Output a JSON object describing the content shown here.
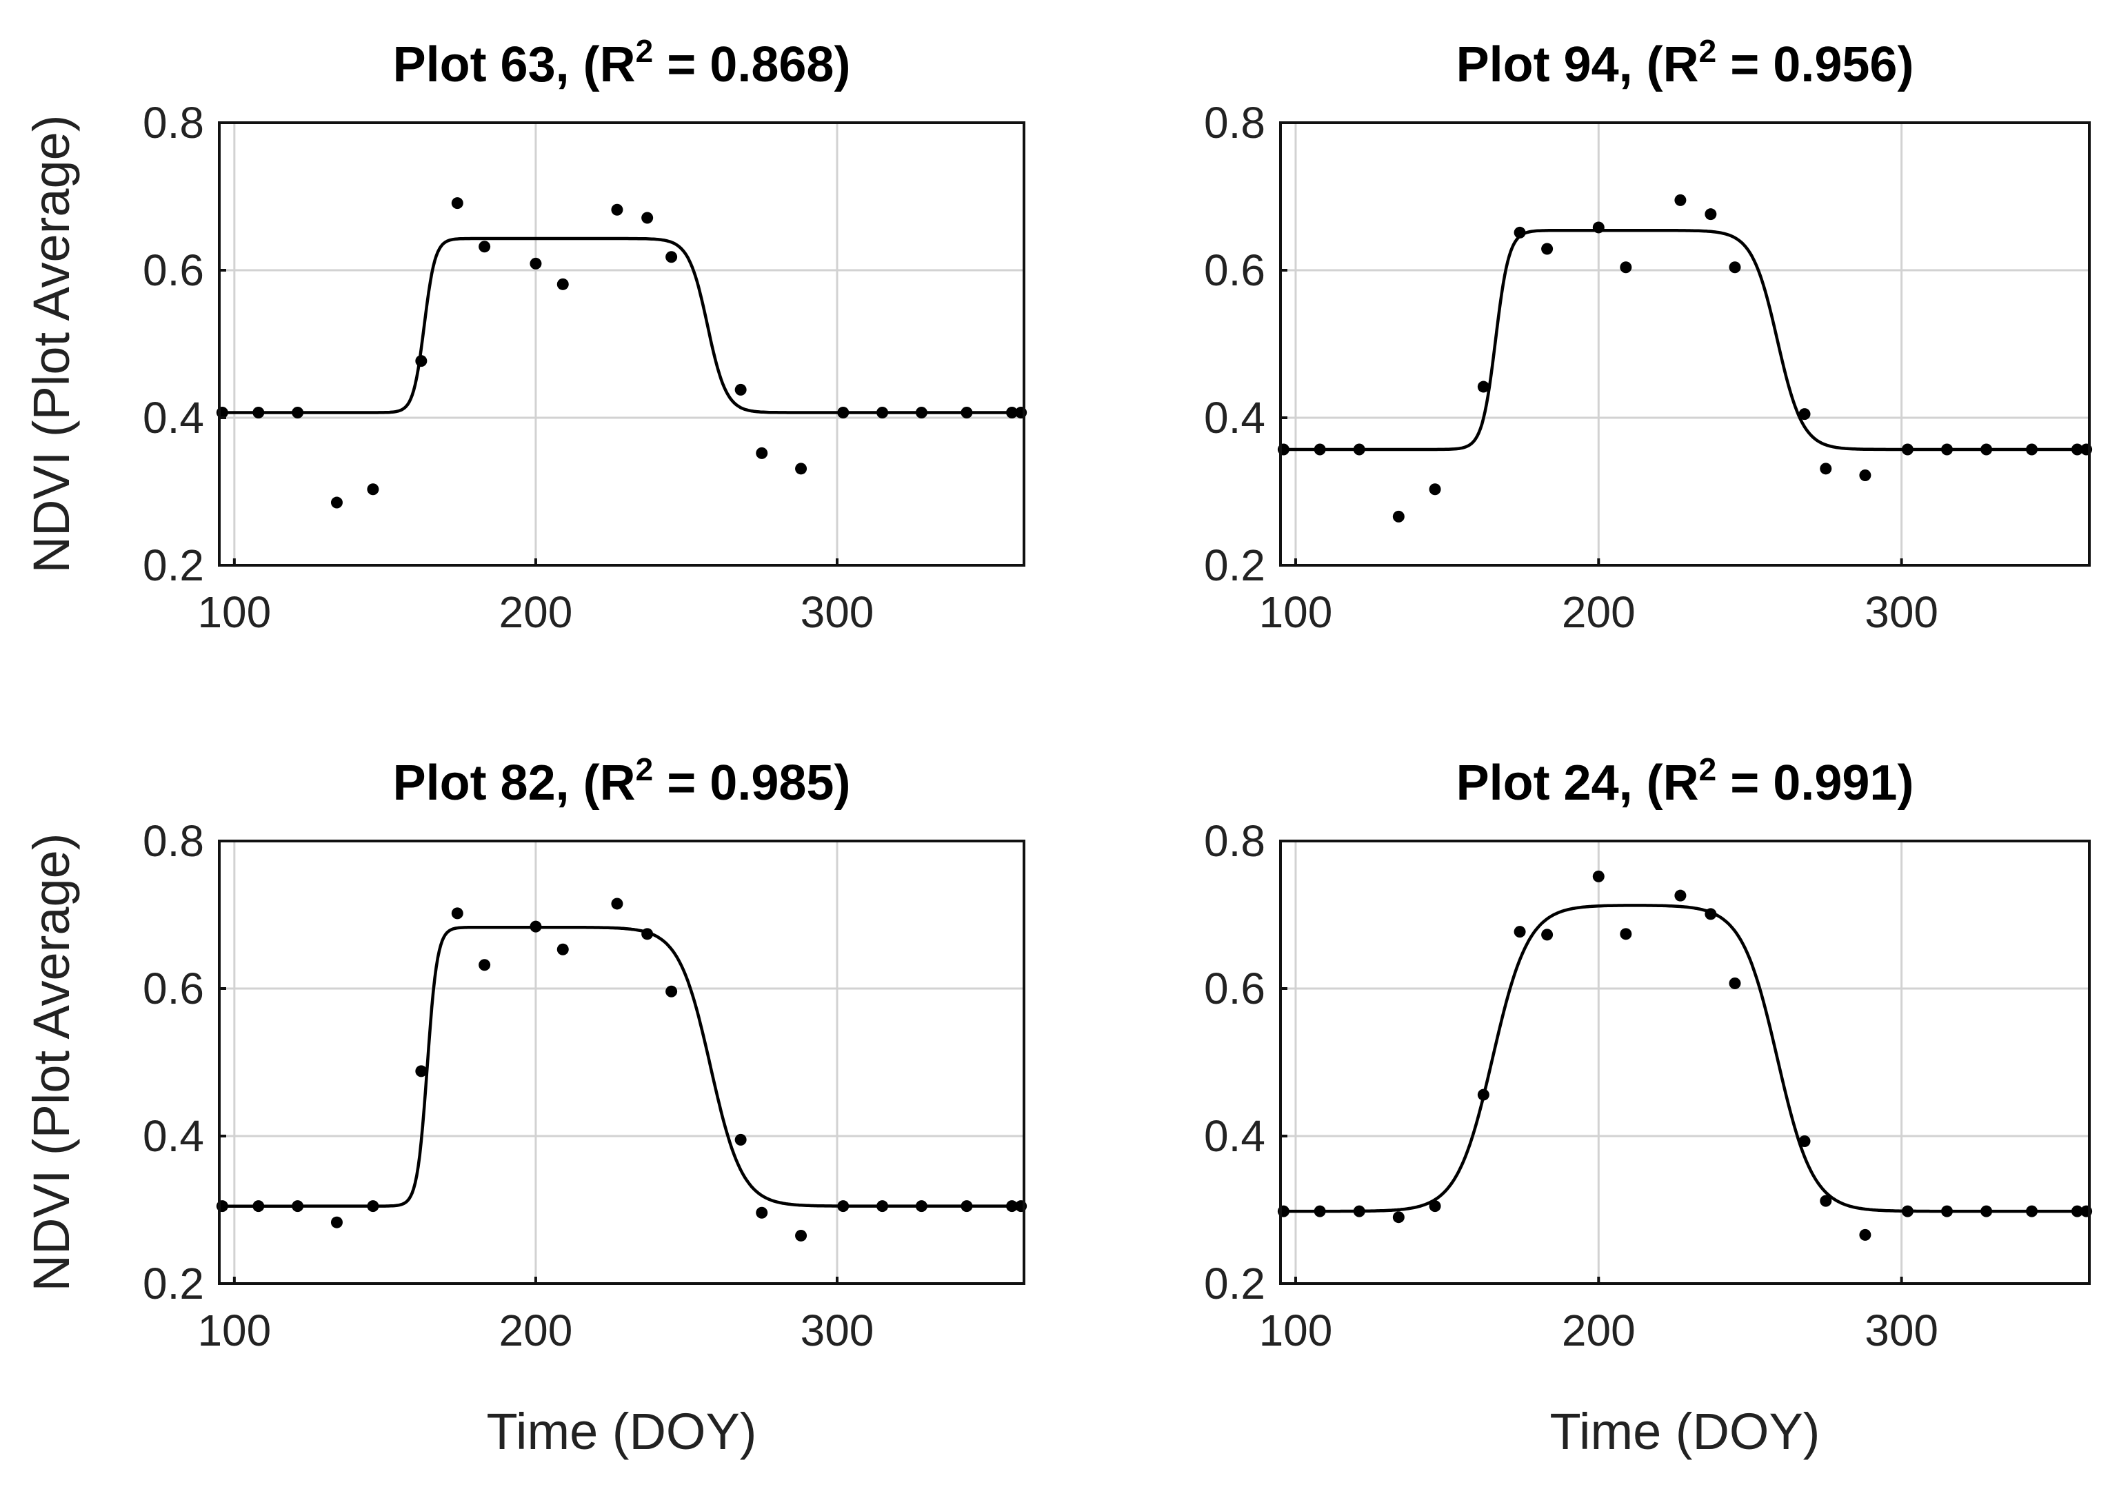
{
  "chart_data": [
    {
      "type": "scatter",
      "title_prefix": "Plot 63, (R",
      "title_sup": "2",
      "title_suffix": " = 0.868)",
      "xlabel": "",
      "ylabel": "NDVI (Plot Average)",
      "xlim": [
        95,
        362
      ],
      "ylim": [
        0.2,
        0.8
      ],
      "xticks": [
        100,
        200,
        300
      ],
      "xtick_labels": [
        "100",
        "200",
        "300"
      ],
      "yticks": [
        0.2,
        0.4,
        0.6,
        0.8
      ],
      "ytick_labels": [
        "0.2",
        "0.4",
        "0.6",
        "0.8"
      ],
      "grid": true,
      "series": [
        {
          "name": "observed",
          "marker": "dot",
          "x": [
            96,
            108,
            121,
            134,
            146,
            162,
            174,
            183,
            200,
            209,
            227,
            237,
            245,
            268,
            275,
            288,
            302,
            315,
            328,
            343,
            358,
            361
          ],
          "y": [
            0.407,
            0.407,
            0.407,
            0.285,
            0.303,
            0.477,
            0.691,
            0.632,
            0.609,
            0.581,
            0.682,
            0.671,
            0.618,
            0.438,
            0.352,
            0.331,
            0.407,
            0.407,
            0.407,
            0.407,
            0.407,
            0.407
          ]
        },
        {
          "name": "fitted",
          "style": "line",
          "baseline": 0.407,
          "peak": 0.643,
          "green_up_doy": 163,
          "green_up_rate": 0.55,
          "senescence_doy": 257,
          "senescence_rate": 0.32,
          "x_start": 95,
          "x_end": 362
        }
      ]
    },
    {
      "type": "scatter",
      "title_prefix": "Plot 94, (R",
      "title_sup": "2",
      "title_suffix": " = 0.956)",
      "xlabel": "",
      "ylabel": "",
      "xlim": [
        95,
        362
      ],
      "ylim": [
        0.2,
        0.8
      ],
      "xticks": [
        100,
        200,
        300
      ],
      "xtick_labels": [
        "100",
        "200",
        "300"
      ],
      "yticks": [
        0.2,
        0.4,
        0.6,
        0.8
      ],
      "ytick_labels": [
        "0.2",
        "0.4",
        "0.6",
        "0.8"
      ],
      "grid": true,
      "series": [
        {
          "name": "observed",
          "marker": "dot",
          "x": [
            96,
            108,
            121,
            134,
            146,
            162,
            174,
            183,
            200,
            209,
            227,
            237,
            245,
            268,
            275,
            288,
            302,
            315,
            328,
            343,
            358,
            361
          ],
          "y": [
            0.357,
            0.357,
            0.357,
            0.266,
            0.303,
            0.442,
            0.651,
            0.629,
            0.658,
            0.604,
            0.695,
            0.676,
            0.604,
            0.405,
            0.331,
            0.322,
            0.357,
            0.357,
            0.357,
            0.357,
            0.357,
            0.357
          ]
        },
        {
          "name": "fitted",
          "style": "line",
          "baseline": 0.357,
          "peak": 0.654,
          "green_up_doy": 166,
          "green_up_rate": 0.45,
          "senescence_doy": 259,
          "senescence_rate": 0.24,
          "x_start": 95,
          "x_end": 362
        }
      ]
    },
    {
      "type": "scatter",
      "title_prefix": "Plot 82, (R",
      "title_sup": "2",
      "title_suffix": " = 0.985)",
      "xlabel": "Time (DOY)",
      "ylabel": "NDVI (Plot Average)",
      "xlim": [
        95,
        362
      ],
      "ylim": [
        0.2,
        0.8
      ],
      "xticks": [
        100,
        200,
        300
      ],
      "xtick_labels": [
        "100",
        "200",
        "300"
      ],
      "yticks": [
        0.2,
        0.4,
        0.6,
        0.8
      ],
      "ytick_labels": [
        "0.2",
        "0.4",
        "0.6",
        "0.8"
      ],
      "grid": true,
      "series": [
        {
          "name": "observed",
          "marker": "dot",
          "x": [
            96,
            108,
            121,
            134,
            146,
            162,
            174,
            183,
            200,
            209,
            227,
            237,
            245,
            268,
            275,
            288,
            302,
            315,
            328,
            343,
            358,
            361
          ],
          "y": [
            0.305,
            0.305,
            0.305,
            0.283,
            0.305,
            0.488,
            0.702,
            0.632,
            0.684,
            0.653,
            0.715,
            0.674,
            0.596,
            0.395,
            0.296,
            0.265,
            0.305,
            0.305,
            0.305,
            0.305,
            0.305,
            0.305
          ]
        },
        {
          "name": "fitted",
          "style": "line",
          "baseline": 0.305,
          "peak": 0.683,
          "green_up_doy": 164,
          "green_up_rate": 0.6,
          "senescence_doy": 258,
          "senescence_rate": 0.19,
          "x_start": 95,
          "x_end": 362
        }
      ]
    },
    {
      "type": "scatter",
      "title_prefix": "Plot 24, (R",
      "title_sup": "2",
      "title_suffix": " = 0.991)",
      "xlabel": "Time (DOY)",
      "ylabel": "",
      "xlim": [
        95,
        362
      ],
      "ylim": [
        0.2,
        0.8
      ],
      "xticks": [
        100,
        200,
        300
      ],
      "xtick_labels": [
        "100",
        "200",
        "300"
      ],
      "yticks": [
        0.2,
        0.4,
        0.6,
        0.8
      ],
      "ytick_labels": [
        "0.2",
        "0.4",
        "0.6",
        "0.8"
      ],
      "grid": true,
      "series": [
        {
          "name": "observed",
          "marker": "dot",
          "x": [
            96,
            108,
            121,
            134,
            146,
            162,
            174,
            183,
            200,
            209,
            227,
            237,
            245,
            268,
            275,
            288,
            302,
            315,
            328,
            343,
            358,
            361
          ],
          "y": [
            0.298,
            0.298,
            0.298,
            0.29,
            0.305,
            0.456,
            0.677,
            0.673,
            0.752,
            0.674,
            0.726,
            0.701,
            0.607,
            0.393,
            0.312,
            0.266,
            0.298,
            0.298,
            0.298,
            0.298,
            0.298,
            0.298
          ]
        },
        {
          "name": "fitted",
          "style": "line",
          "baseline": 0.298,
          "peak": 0.713,
          "green_up_doy": 165,
          "green_up_rate": 0.17,
          "senescence_doy": 259,
          "senescence_rate": 0.17,
          "x_start": 95,
          "x_end": 362
        }
      ]
    }
  ]
}
